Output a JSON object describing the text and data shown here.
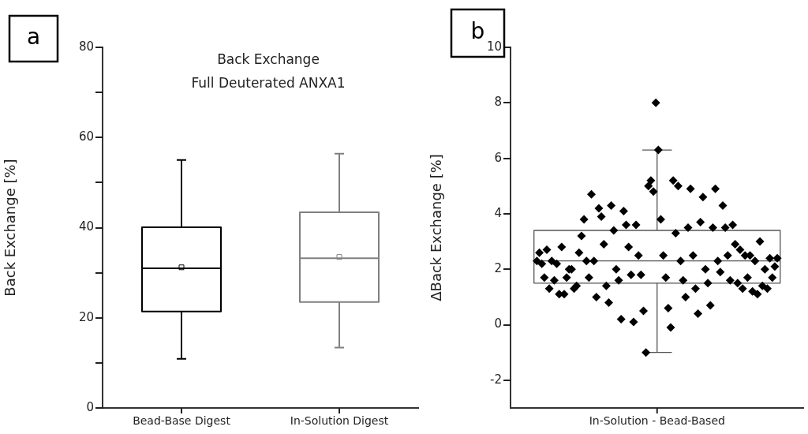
{
  "chart_data": [
    {
      "type": "box",
      "title": "Back Exchange",
      "subtitle": "Full Deuterated ANXA1",
      "ylabel": "Back Exchange [%]",
      "annotations": [
        "a"
      ],
      "categories": [
        "Bead-Base Digest",
        "In-Solution Digest"
      ],
      "boxes": [
        {
          "low": 10.9,
          "q1": 21.4,
          "median": 31,
          "q3": 40.1,
          "high": 55,
          "mean": 31.2
        },
        {
          "low": 13.4,
          "q1": 23.5,
          "median": 33.2,
          "q3": 43.4,
          "high": 56.4,
          "mean": 33.5
        }
      ],
      "colors": [
        "#000000",
        "#808080"
      ],
      "ylim": [
        0,
        80
      ],
      "yticks": [
        0,
        {
          "value": 10,
          "label": null
        },
        20,
        {
          "value": 30,
          "label": null
        },
        40,
        {
          "value": 50,
          "label": null
        },
        60,
        {
          "value": 70,
          "label": null
        },
        80
      ],
      "grid": false,
      "legend": false
    },
    {
      "type": "box",
      "ylabel": "ΔBack Exchange [%]",
      "annotations": [
        "b"
      ],
      "categories": [
        "In-Solution - Bead-Based"
      ],
      "boxes": [
        {
          "low": -1.0,
          "q1": 1.5,
          "median": 2.3,
          "q3": 3.4,
          "high": 6.3
        }
      ],
      "colors": [
        "#555555"
      ],
      "series": [
        {
          "type": "scatter",
          "color": "#000000",
          "x": [
            "In-Solution - Bead-Based",
            "In-Solution - Bead-Based",
            "In-Solution - Bead-Based",
            "In-Solution - Bead-Based",
            "In-Solution - Bead-Based",
            "In-Solution - Bead-Based",
            "In-Solution - Bead-Based",
            "In-Solution - Bead-Based",
            "In-Solution - Bead-Based",
            "In-Solution - Bead-Based",
            "In-Solution - Bead-Based",
            "In-Solution - Bead-Based",
            "In-Solution - Bead-Based",
            "In-Solution - Bead-Based",
            "In-Solution - Bead-Based",
            "In-Solution - Bead-Based",
            "In-Solution - Bead-Based",
            "In-Solution - Bead-Based",
            "In-Solution - Bead-Based",
            "In-Solution - Bead-Based",
            "In-Solution - Bead-Based",
            "In-Solution - Bead-Based",
            "In-Solution - Bead-Based",
            "In-Solution - Bead-Based",
            "In-Solution - Bead-Based",
            "In-Solution - Bead-Based",
            "In-Solution - Bead-Based",
            "In-Solution - Bead-Based",
            "In-Solution - Bead-Based",
            "In-Solution - Bead-Based",
            "In-Solution - Bead-Based",
            "In-Solution - Bead-Based",
            "In-Solution - Bead-Based",
            "In-Solution - Bead-Based",
            "In-Solution - Bead-Based",
            "In-Solution - Bead-Based",
            "In-Solution - Bead-Based",
            "In-Solution - Bead-Based",
            "In-Solution - Bead-Based",
            "In-Solution - Bead-Based",
            "In-Solution - Bead-Based",
            "In-Solution - Bead-Based",
            "In-Solution - Bead-Based",
            "In-Solution - Bead-Based",
            "In-Solution - Bead-Based",
            "In-Solution - Bead-Based",
            "In-Solution - Bead-Based",
            "In-Solution - Bead-Based",
            "In-Solution - Bead-Based",
            "In-Solution - Bead-Based",
            "In-Solution - Bead-Based",
            "In-Solution - Bead-Based",
            "In-Solution - Bead-Based",
            "In-Solution - Bead-Based",
            "In-Solution - Bead-Based",
            "In-Solution - Bead-Based",
            "In-Solution - Bead-Based",
            "In-Solution - Bead-Based",
            "In-Solution - Bead-Based",
            "In-Solution - Bead-Based",
            "In-Solution - Bead-Based",
            "In-Solution - Bead-Based",
            "In-Solution - Bead-Based",
            "In-Solution - Bead-Based",
            "In-Solution - Bead-Based",
            "In-Solution - Bead-Based",
            "In-Solution - Bead-Based",
            "In-Solution - Bead-Based",
            "In-Solution - Bead-Based",
            "In-Solution - Bead-Based",
            "In-Solution - Bead-Based",
            "In-Solution - Bead-Based",
            "In-Solution - Bead-Based",
            "In-Solution - Bead-Based",
            "In-Solution - Bead-Based",
            "In-Solution - Bead-Based",
            "In-Solution - Bead-Based",
            "In-Solution - Bead-Based",
            "In-Solution - Bead-Based",
            "In-Solution - Bead-Based",
            "In-Solution - Bead-Based",
            "In-Solution - Bead-Based",
            "In-Solution - Bead-Based",
            "In-Solution - Bead-Based",
            "In-Solution - Bead-Based",
            "In-Solution - Bead-Based",
            "In-Solution - Bead-Based",
            "In-Solution - Bead-Based",
            "In-Solution - Bead-Based",
            "In-Solution - Bead-Based",
            "In-Solution - Bead-Based",
            "In-Solution - Bead-Based",
            "In-Solution - Bead-Based",
            "In-Solution - Bead-Based",
            "In-Solution - Bead-Based",
            "In-Solution - Bead-Based",
            "In-Solution - Bead-Based",
            "In-Solution - Bead-Based"
          ],
          "values": [
            2.3,
            2.6,
            2.2,
            1.7,
            2.7,
            1.3,
            2.3,
            1.6,
            2.2,
            1.1,
            2.8,
            1.1,
            1.7,
            2.0,
            2.0,
            1.3,
            1.4,
            2.6,
            3.2,
            3.8,
            2.3,
            1.7,
            4.7,
            2.3,
            1.0,
            4.2,
            3.9,
            2.9,
            1.4,
            0.8,
            4.3,
            3.4,
            2.0,
            1.6,
            0.2,
            4.1,
            3.6,
            2.8,
            1.8,
            0.1,
            3.6,
            2.5,
            1.8,
            0.5,
            -1.0,
            5.0,
            5.2,
            4.8,
            8.0,
            6.3,
            3.8,
            2.5,
            1.7,
            0.6,
            -0.1,
            5.2,
            3.3,
            5.0,
            2.3,
            1.6,
            1.0,
            3.5,
            4.9,
            2.5,
            1.3,
            0.4,
            3.7,
            4.6,
            2.0,
            1.5,
            0.7,
            3.5,
            4.9,
            2.3,
            1.9,
            4.3,
            3.5,
            2.5,
            1.6,
            3.6,
            2.9,
            1.5,
            2.7,
            1.3,
            2.5,
            1.7,
            2.5,
            1.2,
            2.3,
            1.1,
            3.0,
            1.4,
            2.0,
            1.3,
            2.4,
            1.7,
            2.1,
            2.4
          ]
        }
      ],
      "marker": "diamond",
      "ylim": [
        -3,
        10
      ],
      "yticks": [
        -2,
        0,
        2,
        4,
        6,
        8,
        10
      ],
      "grid": false,
      "legend": false
    }
  ]
}
